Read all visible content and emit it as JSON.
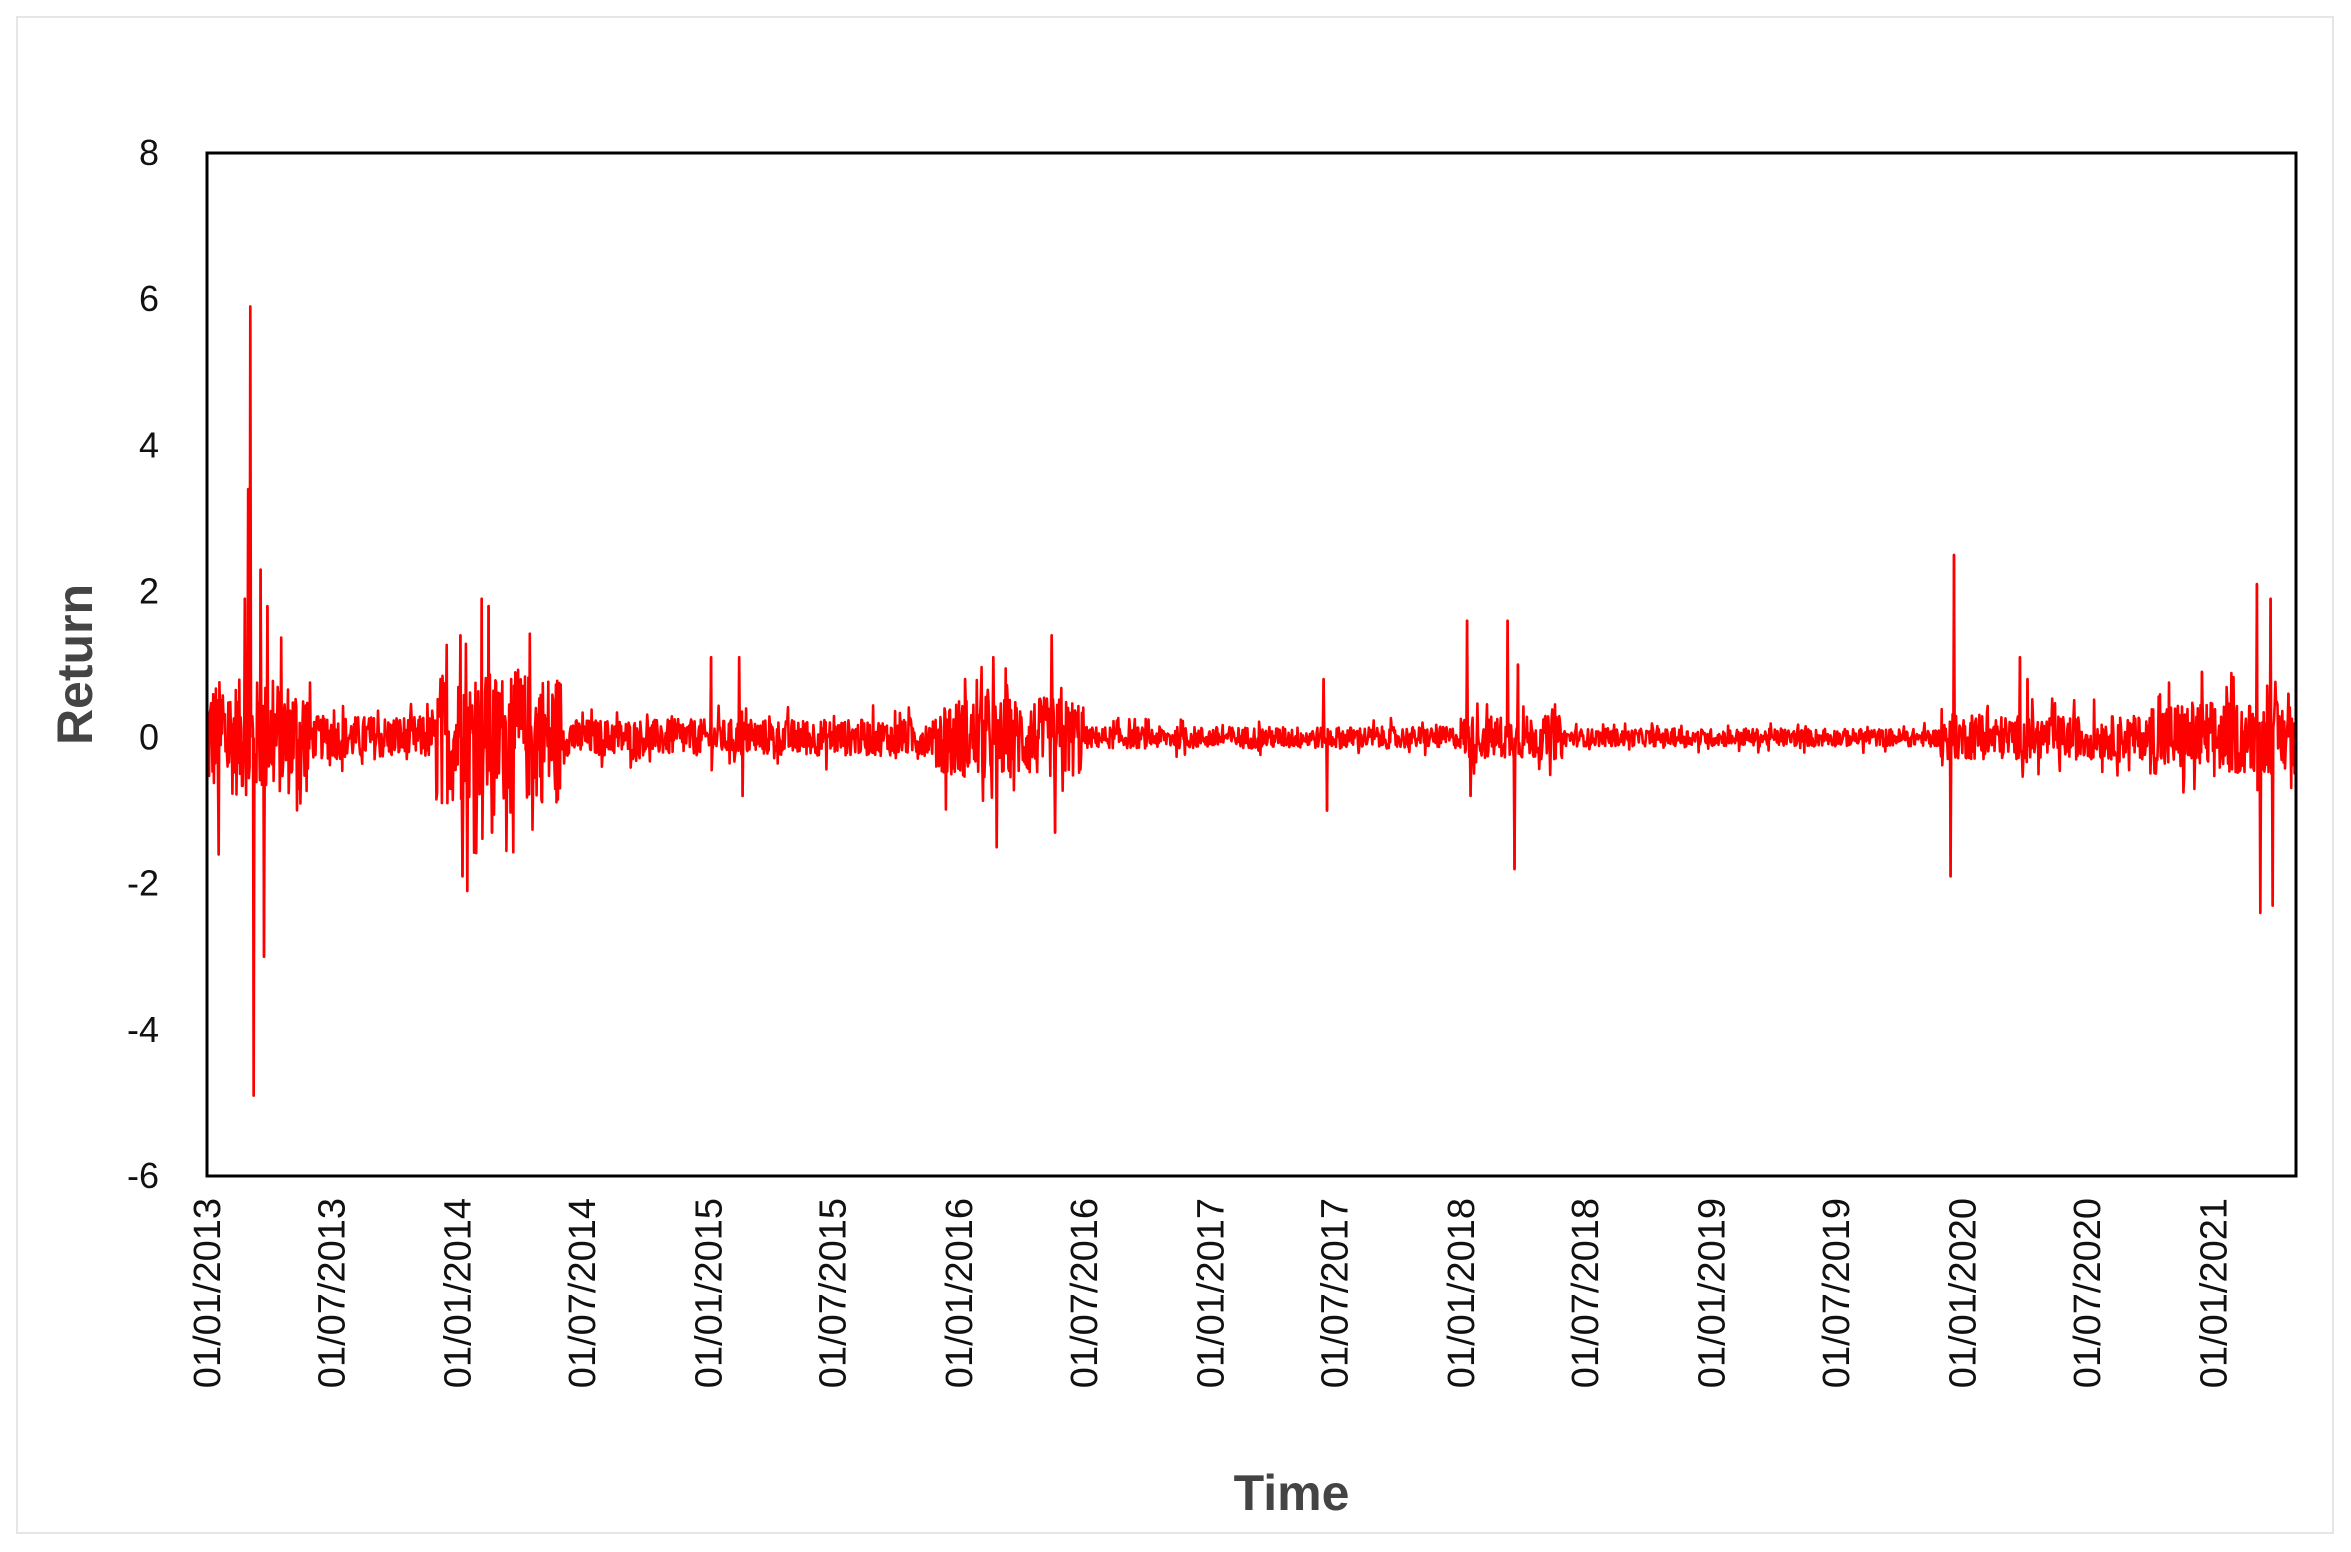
{
  "chart_data": {
    "type": "line",
    "xlabel": "Time",
    "ylabel": "Return",
    "ylim": [
      -6,
      8
    ],
    "y_ticks": [
      "8",
      "6",
      "4",
      "2",
      "0",
      "-2",
      "-4",
      "-6"
    ],
    "x_ticks": [
      "01/01/2013",
      "01/07/2013",
      "01/01/2014",
      "01/07/2014",
      "01/01/2015",
      "01/07/2015",
      "01/01/2016",
      "01/07/2016",
      "01/01/2017",
      "01/07/2017",
      "01/01/2018",
      "01/07/2018",
      "01/01/2019",
      "01/07/2019",
      "01/01/2020",
      "01/07/2020",
      "01/01/2021"
    ],
    "xlim": [
      "01/01/2013",
      "01/05/2021"
    ],
    "grid": false,
    "legend": "none",
    "series_color": "#ff0000",
    "background_noise_by_period": [
      {
        "from": "01/01/2013",
        "to": "01/06/2013",
        "amplitude": 0.8
      },
      {
        "from": "01/06/2013",
        "to": "01/12/2013",
        "amplitude": 0.3
      },
      {
        "from": "01/12/2013",
        "to": "01/06/2014",
        "amplitude": 0.9
      },
      {
        "from": "01/06/2014",
        "to": "01/12/2015",
        "amplitude": 0.25
      },
      {
        "from": "01/12/2015",
        "to": "01/07/2016",
        "amplitude": 0.55
      },
      {
        "from": "01/07/2016",
        "to": "01/01/2018",
        "amplitude": 0.15
      },
      {
        "from": "01/01/2018",
        "to": "01/06/2018",
        "amplitude": 0.3
      },
      {
        "from": "01/06/2018",
        "to": "01/12/2019",
        "amplitude": 0.12
      },
      {
        "from": "01/12/2019",
        "to": "01/10/2020",
        "amplitude": 0.3
      },
      {
        "from": "01/10/2020",
        "to": "01/05/2021",
        "amplitude": 0.5
      }
    ],
    "spikes": [
      {
        "date": "05/03/2013",
        "value": 5.9
      },
      {
        "date": "10/03/2013",
        "value": -4.9
      },
      {
        "date": "02/03/2013",
        "value": 3.4
      },
      {
        "date": "20/03/2013",
        "value": 2.3
      },
      {
        "date": "25/03/2013",
        "value": -3.0
      },
      {
        "date": "18/01/2013",
        "value": -1.6
      },
      {
        "date": "25/02/2013",
        "value": 1.9
      },
      {
        "date": "30/03/2013",
        "value": 1.8
      },
      {
        "date": "05/01/2014",
        "value": 1.4
      },
      {
        "date": "15/01/2014",
        "value": -2.1
      },
      {
        "date": "08/01/2014",
        "value": -1.9
      },
      {
        "date": "05/02/2014",
        "value": 1.9
      },
      {
        "date": "15/02/2014",
        "value": 1.8
      },
      {
        "date": "20/02/2014",
        "value": -1.3
      },
      {
        "date": "20/03/2014",
        "value": 0.8
      },
      {
        "date": "05/01/2015",
        "value": 1.1
      },
      {
        "date": "15/02/2015",
        "value": 1.1
      },
      {
        "date": "20/02/2015",
        "value": -0.8
      },
      {
        "date": "10/01/2016",
        "value": 0.8
      },
      {
        "date": "20/02/2016",
        "value": 1.1
      },
      {
        "date": "25/02/2016",
        "value": -1.5
      },
      {
        "date": "15/05/2016",
        "value": 1.4
      },
      {
        "date": "20/05/2016",
        "value": -1.3
      },
      {
        "date": "15/06/2017",
        "value": 0.8
      },
      {
        "date": "20/06/2017",
        "value": -1.0
      },
      {
        "date": "10/01/2018",
        "value": 1.6
      },
      {
        "date": "15/01/2018",
        "value": -0.8
      },
      {
        "date": "10/03/2018",
        "value": 1.6
      },
      {
        "date": "20/03/2018",
        "value": -1.8
      },
      {
        "date": "25/03/2018",
        "value": 1.0
      },
      {
        "date": "20/12/2019",
        "value": 2.5
      },
      {
        "date": "15/12/2019",
        "value": -1.9
      },
      {
        "date": "15/01/2020",
        "value": 0.3
      },
      {
        "date": "25/03/2020",
        "value": 1.1
      },
      {
        "date": "05/04/2020",
        "value": 0.8
      },
      {
        "date": "15/12/2020",
        "value": 0.9
      },
      {
        "date": "05/03/2021",
        "value": 2.1
      },
      {
        "date": "10/03/2021",
        "value": -2.4
      },
      {
        "date": "25/03/2021",
        "value": 1.9
      },
      {
        "date": "28/03/2021",
        "value": -2.3
      },
      {
        "date": "20/04/2021",
        "value": 0.6
      }
    ]
  }
}
